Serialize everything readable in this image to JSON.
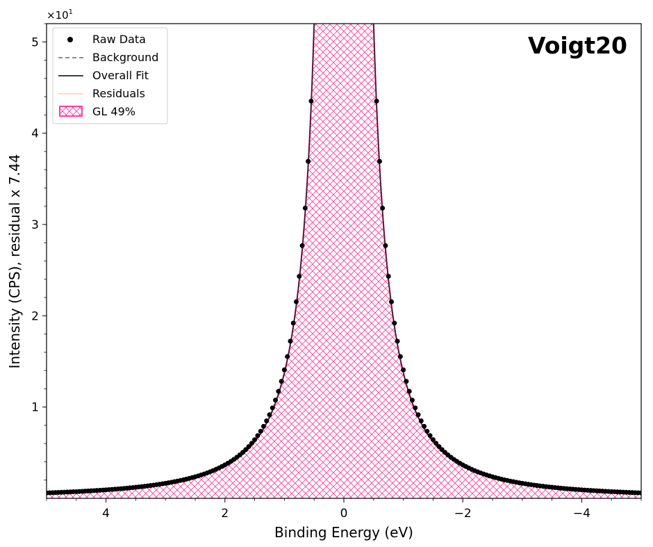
{
  "chart_data": {
    "type": "scatter",
    "title": "Voigt20",
    "xlabel": "Binding Energy (eV)",
    "ylabel": "Intensity (CPS), residual x 7.44",
    "y_multiplier": "×10",
    "y_multiplier_exp": "1",
    "xlim": [
      5,
      -5
    ],
    "ylim": [
      0,
      5.2
    ],
    "x_reversed": true,
    "x_ticks": [
      4,
      2,
      0,
      -2,
      -4
    ],
    "x_tick_labels": [
      "4",
      "2",
      "0",
      "−2",
      "−4"
    ],
    "y_ticks": [
      1,
      2,
      3,
      4,
      5
    ],
    "y_tick_labels": [
      "1",
      "2",
      "3",
      "4",
      "5"
    ],
    "grid": false,
    "legend_placement": "top-left",
    "legend": [
      {
        "label": "Raw Data",
        "style": "dot",
        "color": "#000000"
      },
      {
        "label": "Background",
        "style": "dashed",
        "color": "#8a8a8a"
      },
      {
        "label": "Overall Fit",
        "style": "solid",
        "color": "#404040"
      },
      {
        "label": "Residuals",
        "style": "solid",
        "color": "#ffd9c4"
      },
      {
        "label": "GL 49%",
        "style": "hatch",
        "color": "#ff3d9e"
      }
    ],
    "peak": {
      "center": 0,
      "amplitude": 100,
      "fwhm": 0.34,
      "gl_mixing": 0.49,
      "ylim_clip": 5.2
    },
    "tail_extra": {
      "amplitude": 0.05,
      "width": 1.3
    },
    "series": [
      {
        "name": "Raw Data",
        "x_range": [
          5,
          -5
        ],
        "x_step": 0.05,
        "values_note": "peak profile"
      },
      {
        "name": "Overall Fit"
      },
      {
        "name": "GL 49%"
      }
    ]
  },
  "colors": {
    "data": "#000000",
    "fit": "#3a1a2a",
    "hatch": "#ff3d9e",
    "background": "#8a8a8a",
    "residual": "#ffd9c4"
  }
}
